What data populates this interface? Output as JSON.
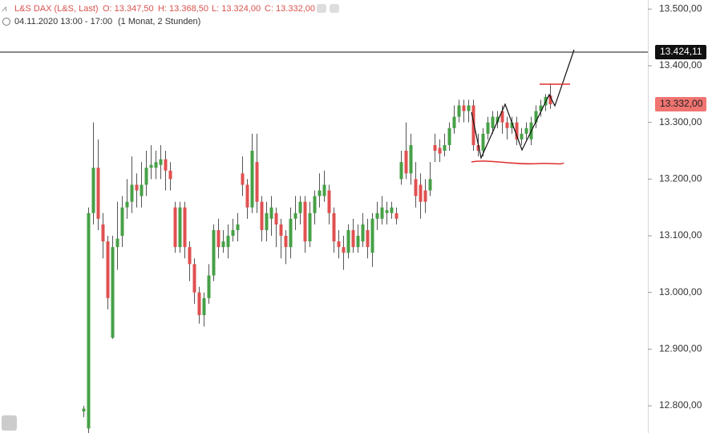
{
  "chart_data": {
    "type": "candlestick",
    "header": {
      "instrument": "L&S DAX (L&S, Last)",
      "open": "O: 13.347,50",
      "high": "H: 13.368,50",
      "low": "L: 13.324,00",
      "close": "C: 13.332,00",
      "period": "04.11.2020 13:00 - 17:00",
      "range": "(1 Monat, 2 Stunden)"
    },
    "up_color": "#46a046",
    "down_color": "#e05050",
    "ylim": [
      12752,
      13516
    ],
    "yticks": [
      {
        "value": 12800,
        "label": "12.800,00"
      },
      {
        "value": 12900,
        "label": "12.900,00"
      },
      {
        "value": 13000,
        "label": "13.000,00"
      },
      {
        "value": 13100,
        "label": "13.100,00"
      },
      {
        "value": 13200,
        "label": "13.200,00"
      },
      {
        "value": 13300,
        "label": "13.300,00"
      },
      {
        "value": 13400,
        "label": "13.400,00"
      },
      {
        "value": 13500,
        "label": "13.500,00"
      }
    ],
    "hline": {
      "value": 13424.11,
      "label": "13.424,11"
    },
    "last_price": {
      "value": 13332,
      "label": "13.332,00"
    },
    "open": [
      12790,
      12760,
      13140,
      13220,
      13120,
      13090,
      12920,
      13080,
      13100,
      13150,
      13160,
      13190,
      13170,
      13190,
      13220,
      13220,
      13225,
      13235,
      13215,
      13150,
      13080,
      13150,
      13080,
      13050,
      13000,
      12960,
      12990,
      13030,
      13110,
      13080,
      13080,
      13100,
      13110,
      13210,
      13190,
      13150,
      13230,
      13160,
      13110,
      13130,
      13140,
      13120,
      13100,
      13080,
      13130,
      13140,
      13160,
      13090,
      13140,
      13170,
      13170,
      13180,
      13140,
      13090,
      13080,
      13070,
      13110,
      13080,
      13090,
      13110,
      13070,
      13130,
      13130,
      13140,
      13140,
      13140,
      13200,
      13250,
      13210,
      13200,
      13190,
      13180,
      13180,
      13260,
      13255,
      13250,
      13260,
      13290,
      13310,
      13330,
      13320,
      13330,
      13260,
      13250,
      13280,
      13290,
      13300,
      13320,
      13300,
      13290,
      13300,
      13270,
      13280,
      13270,
      13300,
      13320,
      13330,
      13347.5
    ],
    "high": [
      12800,
      13150,
      13300,
      13270,
      13140,
      13100,
      13100,
      13160,
      13170,
      13200,
      13240,
      13210,
      13230,
      13250,
      13260,
      13250,
      13260,
      13250,
      13230,
      13160,
      13160,
      13160,
      13090,
      13060,
      13010,
      13000,
      13050,
      13120,
      13130,
      13110,
      13120,
      13130,
      13140,
      13240,
      13200,
      13280,
      13280,
      13170,
      13160,
      13170,
      13150,
      13130,
      13110,
      13150,
      13170,
      13170,
      13170,
      13160,
      13180,
      13210,
      13215,
      13190,
      13150,
      13110,
      13100,
      13120,
      13130,
      13120,
      13140,
      13130,
      13140,
      13160,
      13170,
      13160,
      13160,
      13150,
      13250,
      13300,
      13280,
      13230,
      13210,
      13200,
      13230,
      13280,
      13270,
      13280,
      13300,
      13330,
      13340,
      13340,
      13340,
      13340,
      13280,
      13290,
      13310,
      13320,
      13320,
      13330,
      13310,
      13310,
      13310,
      13290,
      13300,
      13310,
      13330,
      13340,
      13350,
      13368.5
    ],
    "low": [
      12780,
      12752,
      13120,
      13110,
      13060,
      12970,
      12918,
      13040,
      13080,
      13130,
      13140,
      13150,
      13150,
      13170,
      13200,
      13200,
      13200,
      13180,
      13180,
      13070,
      13070,
      13060,
      13020,
      12980,
      12945,
      12940,
      12980,
      13020,
      13060,
      13070,
      13060,
      13090,
      13090,
      13170,
      13130,
      13140,
      13140,
      13090,
      13090,
      13100,
      13080,
      13060,
      13050,
      13060,
      13110,
      13120,
      13070,
      13080,
      13120,
      13150,
      13160,
      13120,
      13070,
      13060,
      13040,
      13060,
      13070,
      13070,
      13080,
      13060,
      13045,
      13110,
      13120,
      13120,
      13130,
      13120,
      13190,
      13200,
      13190,
      13150,
      13130,
      13140,
      13170,
      13230,
      13230,
      13240,
      13250,
      13280,
      13300,
      13300,
      13300,
      13250,
      13240,
      13240,
      13270,
      13280,
      13290,
      13280,
      13270,
      13280,
      13260,
      13260,
      13270,
      13260,
      13290,
      13310,
      13320,
      13324
    ],
    "close": [
      12795,
      13140,
      13220,
      13130,
      13090,
      12990,
      13080,
      13095,
      13150,
      13160,
      13190,
      13180,
      13190,
      13220,
      13225,
      13230,
      13235,
      13215,
      13200,
      13080,
      13150,
      13080,
      13050,
      13000,
      12960,
      12990,
      13030,
      13110,
      13080,
      13090,
      13100,
      13110,
      13120,
      13190,
      13150,
      13250,
      13160,
      13110,
      13140,
      13150,
      13120,
      13100,
      13080,
      13130,
      13140,
      13160,
      13090,
      13140,
      13170,
      13180,
      13190,
      13140,
      13090,
      13080,
      13070,
      13110,
      13080,
      13100,
      13120,
      13080,
      13130,
      13140,
      13150,
      13145,
      13150,
      13130,
      13230,
      13210,
      13260,
      13170,
      13160,
      13160,
      13200,
      13250,
      13245,
      13260,
      13290,
      13310,
      13330,
      13320,
      13330,
      13260,
      13250,
      13280,
      13300,
      13310,
      13310,
      13300,
      13290,
      13300,
      13270,
      13280,
      13290,
      13300,
      13320,
      13330,
      13345,
      13332
    ]
  }
}
